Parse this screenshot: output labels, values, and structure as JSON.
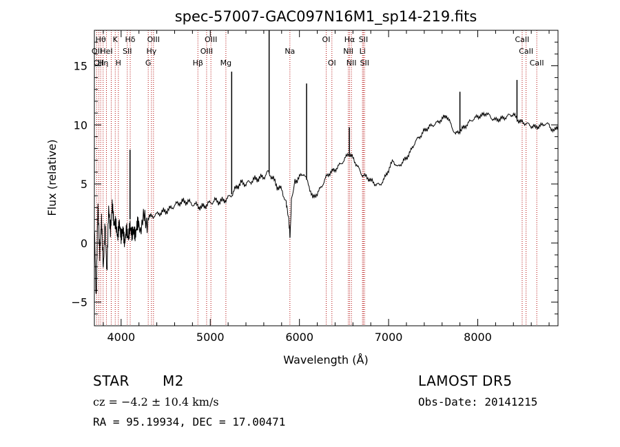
{
  "chart_data": {
    "type": "line",
    "title": "spec-57007-GAC097N16M1_sp14-219.fits",
    "xlabel": "Wavelength (Å)",
    "ylabel": "Flux (relative)",
    "xlim": [
      3700,
      8900
    ],
    "ylim": [
      -7,
      18
    ],
    "xticks": [
      4000,
      5000,
      6000,
      7000,
      8000
    ],
    "yticks": [
      -5,
      0,
      5,
      10,
      15
    ],
    "grid": false,
    "colors": {
      "spectrum": "#000000",
      "lines": "#b00000"
    },
    "series": [
      {
        "x": [
          3700,
          3720,
          3740,
          3760,
          3780,
          3800,
          3820,
          3840,
          3860,
          3880,
          3900,
          3920,
          3940,
          3960,
          3980,
          4000,
          4020,
          4040,
          4060,
          4080,
          4100,
          4120,
          4140,
          4160,
          4180,
          4200,
          4250,
          4300,
          4350,
          4400,
          4450,
          4500,
          4550,
          4600,
          4650,
          4700,
          4750,
          4800,
          4850,
          4900,
          4950,
          5000,
          5050,
          5100,
          5150,
          5200,
          5250,
          5300,
          5350,
          5400,
          5450,
          5500,
          5550,
          5600,
          5650,
          5700,
          5750,
          5800,
          5850,
          5880,
          5895,
          5910,
          5950,
          6000,
          6050,
          6100,
          6150,
          6200,
          6250,
          6300,
          6350,
          6400,
          6450,
          6500,
          6550,
          6600,
          6650,
          6700,
          6750,
          6800,
          6850,
          6900,
          6950,
          7000,
          7050,
          7100,
          7150,
          7200,
          7250,
          7300,
          7350,
          7400,
          7450,
          7500,
          7550,
          7600,
          7650,
          7700,
          7750,
          7800,
          7850,
          7900,
          7950,
          8000,
          8050,
          8100,
          8150,
          8200,
          8250,
          8300,
          8350,
          8400,
          8450,
          8500,
          8550,
          8600,
          8650,
          8700,
          8750,
          8800,
          8850,
          8900
        ],
        "y": [
          2,
          -4.5,
          3.5,
          -1,
          1.8,
          -2.5,
          1.2,
          -3.2,
          2.4,
          0.5,
          2.8,
          1.2,
          1.5,
          0.4,
          1.8,
          0.8,
          1.6,
          0.5,
          1.8,
          1.0,
          2.0,
          1.2,
          1.4,
          0.8,
          1.6,
          1.5,
          1.8,
          2.1,
          2.3,
          2.4,
          2.6,
          2.7,
          2.9,
          3.2,
          3.4,
          3.5,
          3.5,
          3.3,
          3.2,
          3.0,
          3.2,
          3.4,
          3.6,
          3.5,
          3.6,
          3.8,
          4.2,
          4.8,
          5.1,
          5.0,
          5.2,
          5.4,
          5.5,
          5.6,
          6.0,
          5.5,
          4.8,
          4.5,
          3.5,
          2.0,
          0.5,
          3.5,
          5.2,
          5.6,
          5.9,
          5.0,
          3.8,
          4.2,
          4.8,
          5.6,
          6.0,
          6.2,
          6.6,
          7.0,
          7.6,
          7.2,
          6.5,
          5.8,
          5.6,
          5.3,
          5.0,
          4.9,
          5.4,
          6.2,
          7.0,
          6.4,
          6.8,
          7.2,
          7.8,
          8.6,
          9.0,
          9.5,
          9.8,
          10.0,
          10.2,
          10.5,
          10.8,
          10.0,
          9.2,
          9.5,
          9.8,
          10.2,
          10.5,
          10.7,
          10.8,
          11.0,
          10.6,
          10.4,
          10.5,
          10.6,
          10.8,
          10.9,
          10.4,
          10.2,
          10.1,
          9.9,
          9.8,
          9.9,
          10.1,
          10.0,
          9.4,
          10.0
        ]
      }
    ],
    "emission_spikes": [
      {
        "x": 4100,
        "y": 7.9
      },
      {
        "x": 5240,
        "y": 14.5
      },
      {
        "x": 5660,
        "y": 18
      },
      {
        "x": 6080,
        "y": 13.5
      },
      {
        "x": 6560,
        "y": 9.8
      },
      {
        "x": 7800,
        "y": 12.8
      },
      {
        "x": 8440,
        "y": 13.8
      }
    ],
    "spectral_lines": [
      {
        "x": 3727,
        "label": "OII",
        "row": 2
      },
      {
        "x": 3750,
        "label": "OII",
        "row": 3
      },
      {
        "x": 3771,
        "label": "Hθ",
        "row": 1
      },
      {
        "x": 3798,
        "label": "Hη",
        "row": 3
      },
      {
        "x": 3835,
        "label": "HeI",
        "row": 2
      },
      {
        "x": 3889,
        "label": "",
        "row": 0
      },
      {
        "x": 3934,
        "label": "K",
        "row": 1
      },
      {
        "x": 3969,
        "label": "H",
        "row": 3
      },
      {
        "x": 4069,
        "label": "SII",
        "row": 2
      },
      {
        "x": 4102,
        "label": "Hδ",
        "row": 1
      },
      {
        "x": 4304,
        "label": "G",
        "row": 3
      },
      {
        "x": 4340,
        "label": "Hγ",
        "row": 2
      },
      {
        "x": 4363,
        "label": "OIII",
        "row": 1
      },
      {
        "x": 4861,
        "label": "Hβ",
        "row": 3
      },
      {
        "x": 4959,
        "label": "OIII",
        "row": 2
      },
      {
        "x": 5007,
        "label": "OIII",
        "row": 1
      },
      {
        "x": 5175,
        "label": "Mg",
        "row": 3
      },
      {
        "x": 5893,
        "label": "Na",
        "row": 2
      },
      {
        "x": 6300,
        "label": "OI",
        "row": 1
      },
      {
        "x": 6364,
        "label": "OI",
        "row": 3
      },
      {
        "x": 6548,
        "label": "NII",
        "row": 2
      },
      {
        "x": 6563,
        "label": "Hα",
        "row": 1
      },
      {
        "x": 6583,
        "label": "NII",
        "row": 3
      },
      {
        "x": 6707,
        "label": "Li",
        "row": 2
      },
      {
        "x": 6717,
        "label": "SII",
        "row": 1
      },
      {
        "x": 6731,
        "label": "SII",
        "row": 3
      },
      {
        "x": 8498,
        "label": "CaII",
        "row": 1
      },
      {
        "x": 8542,
        "label": "CaII",
        "row": 2
      },
      {
        "x": 8662,
        "label": "CaII",
        "row": 3
      }
    ]
  },
  "info": {
    "class": "STAR",
    "subclass": "M2",
    "survey": "LAMOST DR5",
    "redshift": "cz = −4.2 ± 10.4 km/s",
    "obs_date": "Obs-Date: 20141215",
    "coords": "RA =  95.19934, DEC =  17.00471"
  }
}
